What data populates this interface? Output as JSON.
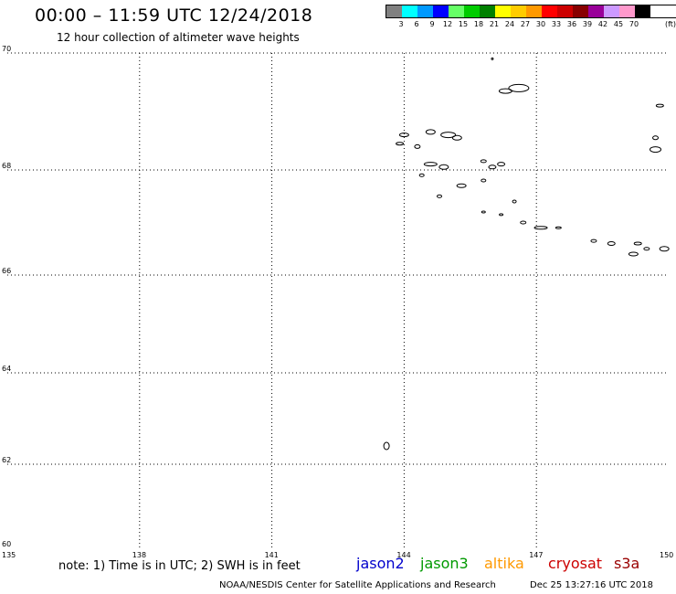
{
  "header": {
    "title": "00:00 – 11:59 UTC 12/24/2018",
    "subtitle": "12 hour collection of altimeter wave heights"
  },
  "legend": {
    "colors": [
      "#808080",
      "#00ffff",
      "#0099ff",
      "#0000ff",
      "#66ff66",
      "#00cc00",
      "#008000",
      "#ffff00",
      "#ffcc00",
      "#ff9900",
      "#ff0000",
      "#cc0000",
      "#880000",
      "#990099",
      "#cc99ff",
      "#ff99cc",
      "#000000"
    ],
    "labels": [
      "3",
      "6",
      "9",
      "12",
      "15",
      "18",
      "21",
      "24",
      "27",
      "30",
      "33",
      "36",
      "39",
      "42",
      "45",
      "70"
    ],
    "unit": "(ft)"
  },
  "axes": {
    "lat_labels": [
      "70",
      "68",
      "66",
      "64",
      "62",
      "60"
    ],
    "lon_labels": [
      "135",
      "138",
      "141",
      "144",
      "147",
      "150"
    ]
  },
  "contours": [
    {
      "lon": 146.0,
      "lat": 69.9,
      "w": 2,
      "h": 2,
      "closed": false
    },
    {
      "lon": 146.6,
      "lat": 69.4,
      "w": 22,
      "h": 8,
      "closed": true
    },
    {
      "lon": 146.3,
      "lat": 69.35,
      "w": 14,
      "h": 5,
      "closed": true
    },
    {
      "lon": 149.8,
      "lat": 69.1,
      "w": 8,
      "h": 3,
      "closed": true
    },
    {
      "lon": 144.0,
      "lat": 68.6,
      "w": 10,
      "h": 4,
      "closed": true
    },
    {
      "lon": 144.6,
      "lat": 68.65,
      "w": 10,
      "h": 5,
      "closed": true
    },
    {
      "lon": 145.0,
      "lat": 68.6,
      "w": 16,
      "h": 6,
      "closed": true
    },
    {
      "lon": 145.2,
      "lat": 68.55,
      "w": 10,
      "h": 5,
      "closed": true
    },
    {
      "lon": 143.9,
      "lat": 68.45,
      "w": 8,
      "h": 3,
      "closed": true
    },
    {
      "lon": 144.3,
      "lat": 68.4,
      "w": 6,
      "h": 4,
      "closed": true
    },
    {
      "lon": 149.7,
      "lat": 68.55,
      "w": 6,
      "h": 4,
      "closed": true
    },
    {
      "lon": 149.7,
      "lat": 68.35,
      "w": 12,
      "h": 6,
      "closed": true
    },
    {
      "lon": 144.6,
      "lat": 68.1,
      "w": 14,
      "h": 4,
      "closed": true
    },
    {
      "lon": 144.9,
      "lat": 68.05,
      "w": 10,
      "h": 5,
      "closed": true
    },
    {
      "lon": 145.8,
      "lat": 68.15,
      "w": 6,
      "h": 3,
      "closed": true
    },
    {
      "lon": 146.0,
      "lat": 68.05,
      "w": 8,
      "h": 4,
      "closed": true
    },
    {
      "lon": 146.2,
      "lat": 68.1,
      "w": 8,
      "h": 4,
      "closed": true
    },
    {
      "lon": 144.4,
      "lat": 67.9,
      "w": 5,
      "h": 3,
      "closed": true
    },
    {
      "lon": 145.3,
      "lat": 67.7,
      "w": 10,
      "h": 4,
      "closed": true
    },
    {
      "lon": 145.8,
      "lat": 67.8,
      "w": 5,
      "h": 3,
      "closed": true
    },
    {
      "lon": 144.8,
      "lat": 67.5,
      "w": 5,
      "h": 3,
      "closed": true
    },
    {
      "lon": 146.5,
      "lat": 67.4,
      "w": 4,
      "h": 3,
      "closed": true
    },
    {
      "lon": 145.8,
      "lat": 67.2,
      "w": 4,
      "h": 2,
      "closed": true
    },
    {
      "lon": 146.2,
      "lat": 67.15,
      "w": 4,
      "h": 2,
      "closed": true
    },
    {
      "lon": 146.7,
      "lat": 67.0,
      "w": 6,
      "h": 3,
      "closed": true
    },
    {
      "lon": 147.1,
      "lat": 66.9,
      "w": 14,
      "h": 3,
      "closed": true
    },
    {
      "lon": 147.5,
      "lat": 66.9,
      "w": 6,
      "h": 2,
      "closed": true
    },
    {
      "lon": 148.3,
      "lat": 66.65,
      "w": 6,
      "h": 3,
      "closed": true
    },
    {
      "lon": 148.7,
      "lat": 66.6,
      "w": 8,
      "h": 4,
      "closed": true
    },
    {
      "lon": 149.3,
      "lat": 66.6,
      "w": 8,
      "h": 3,
      "closed": true
    },
    {
      "lon": 149.2,
      "lat": 66.4,
      "w": 10,
      "h": 4,
      "closed": true
    },
    {
      "lon": 149.9,
      "lat": 66.5,
      "w": 10,
      "h": 5,
      "closed": true
    },
    {
      "lon": 149.5,
      "lat": 66.5,
      "w": 6,
      "h": 3,
      "closed": true
    },
    {
      "lon": 143.6,
      "lat": 62.4,
      "w": 6,
      "h": 8,
      "closed": true
    }
  ],
  "footer": {
    "note": "note: 1) Time is in UTC; 2) SWH is in feet",
    "satellites": [
      {
        "name": "jason2",
        "color": "#0000cc"
      },
      {
        "name": "jason3",
        "color": "#009900"
      },
      {
        "name": "altika",
        "color": "#ff9900"
      },
      {
        "name": "cryosat",
        "color": "#cc0000"
      },
      {
        "name": "s3a",
        "color": "#990000"
      }
    ],
    "credit": "NOAA/NESDIS Center for Satellite Applications and Research",
    "timestamp": "Dec 25 13:27:16 UTC 2018"
  }
}
